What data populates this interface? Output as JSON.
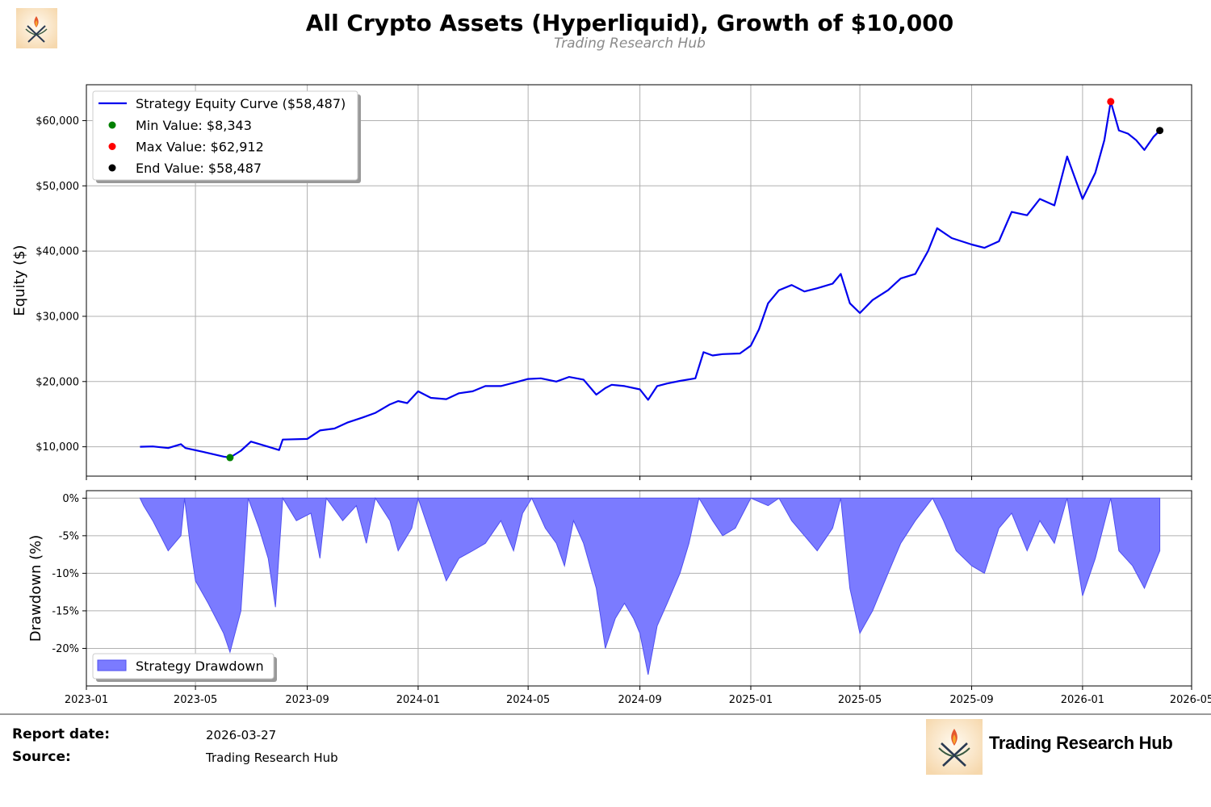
{
  "header": {
    "title": "All Crypto Assets (Hyperliquid), Growth of $10,000",
    "subtitle": "Trading Research Hub"
  },
  "colors": {
    "equity_line": "#0000ee",
    "drawdown_fill": "#7b7bff",
    "drawdown_edge": "#5050f0",
    "min_marker": "#008000",
    "max_marker": "#ff0000",
    "end_marker": "#000000",
    "grid": "#b0b0b0"
  },
  "chart_data": [
    {
      "type": "line",
      "ylabel": "Equity ($)",
      "xlim": [
        "2023-01-01",
        "2026-05-01"
      ],
      "ylim": [
        5500,
        65500
      ],
      "y_ticks": [
        10000,
        20000,
        30000,
        40000,
        50000,
        60000
      ],
      "y_tick_labels": [
        "$10,000",
        "$20,000",
        "$30,000",
        "$40,000",
        "$50,000",
        "$60,000"
      ],
      "grid": true,
      "legend_position": "top-left",
      "series": [
        {
          "name": "Strategy Equity Curve ($58,487)",
          "points": [
            [
              "2023-03-01",
              10000
            ],
            [
              "2023-03-15",
              10050
            ],
            [
              "2023-04-01",
              9800
            ],
            [
              "2023-04-15",
              10400
            ],
            [
              "2023-04-20",
              9800
            ],
            [
              "2023-05-10",
              9200
            ],
            [
              "2023-06-01",
              8500
            ],
            [
              "2023-06-08",
              8343
            ],
            [
              "2023-06-20",
              9400
            ],
            [
              "2023-07-01",
              10800
            ],
            [
              "2023-07-20",
              10000
            ],
            [
              "2023-08-01",
              9500
            ],
            [
              "2023-08-05",
              11100
            ],
            [
              "2023-09-01",
              11200
            ],
            [
              "2023-09-15",
              12500
            ],
            [
              "2023-10-01",
              12800
            ],
            [
              "2023-10-15",
              13700
            ],
            [
              "2023-11-01",
              14500
            ],
            [
              "2023-11-15",
              15200
            ],
            [
              "2023-12-01",
              16500
            ],
            [
              "2023-12-10",
              17000
            ],
            [
              "2023-12-20",
              16700
            ],
            [
              "2024-01-01",
              18500
            ],
            [
              "2024-01-15",
              17500
            ],
            [
              "2024-02-01",
              17300
            ],
            [
              "2024-02-15",
              18200
            ],
            [
              "2024-03-01",
              18500
            ],
            [
              "2024-03-15",
              19300
            ],
            [
              "2024-04-01",
              19300
            ],
            [
              "2024-04-15",
              19800
            ],
            [
              "2024-05-01",
              20400
            ],
            [
              "2024-05-15",
              20500
            ],
            [
              "2024-06-01",
              20000
            ],
            [
              "2024-06-15",
              20700
            ],
            [
              "2024-07-01",
              20300
            ],
            [
              "2024-07-15",
              18000
            ],
            [
              "2024-07-25",
              19000
            ],
            [
              "2024-08-01",
              19500
            ],
            [
              "2024-08-15",
              19300
            ],
            [
              "2024-09-01",
              18800
            ],
            [
              "2024-09-10",
              17200
            ],
            [
              "2024-09-20",
              19300
            ],
            [
              "2024-10-01",
              19700
            ],
            [
              "2024-10-15",
              20100
            ],
            [
              "2024-11-01",
              20500
            ],
            [
              "2024-11-10",
              24500
            ],
            [
              "2024-11-20",
              24000
            ],
            [
              "2024-12-01",
              24200
            ],
            [
              "2024-12-20",
              24300
            ],
            [
              "2025-01-01",
              25500
            ],
            [
              "2025-01-10",
              28000
            ],
            [
              "2025-01-20",
              32000
            ],
            [
              "2025-02-01",
              34000
            ],
            [
              "2025-02-15",
              34800
            ],
            [
              "2025-03-01",
              33800
            ],
            [
              "2025-03-15",
              34300
            ],
            [
              "2025-04-01",
              35000
            ],
            [
              "2025-04-10",
              36500
            ],
            [
              "2025-04-20",
              32000
            ],
            [
              "2025-05-01",
              30500
            ],
            [
              "2025-05-15",
              32500
            ],
            [
              "2025-06-01",
              34000
            ],
            [
              "2025-06-15",
              35800
            ],
            [
              "2025-07-01",
              36500
            ],
            [
              "2025-07-15",
              40000
            ],
            [
              "2025-07-25",
              43500
            ],
            [
              "2025-08-10",
              42000
            ],
            [
              "2025-09-01",
              41000
            ],
            [
              "2025-09-15",
              40500
            ],
            [
              "2025-10-01",
              41500
            ],
            [
              "2025-10-15",
              46000
            ],
            [
              "2025-11-01",
              45500
            ],
            [
              "2025-11-15",
              48000
            ],
            [
              "2025-12-01",
              47000
            ],
            [
              "2025-12-15",
              54500
            ],
            [
              "2026-01-01",
              48000
            ],
            [
              "2026-01-15",
              52000
            ],
            [
              "2026-01-25",
              57000
            ],
            [
              "2026-02-01",
              62912
            ],
            [
              "2026-02-10",
              58500
            ],
            [
              "2026-02-20",
              58000
            ],
            [
              "2026-03-01",
              57000
            ],
            [
              "2026-03-10",
              55500
            ],
            [
              "2026-03-20",
              57500
            ],
            [
              "2026-03-27",
              58487
            ]
          ]
        }
      ],
      "markers": [
        {
          "name": "Min Value: $8,343",
          "x": "2023-06-08",
          "y": 8343
        },
        {
          "name": "Max Value: $62,912",
          "x": "2026-02-01",
          "y": 62912
        },
        {
          "name": "End Value: $58,487",
          "x": "2026-03-27",
          "y": 58487
        }
      ]
    },
    {
      "type": "area",
      "ylabel": "Drawdown (%)",
      "xlim": [
        "2023-01-01",
        "2026-05-01"
      ],
      "ylim": [
        -25,
        1
      ],
      "y_ticks": [
        0,
        -5,
        -10,
        -15,
        -20
      ],
      "y_tick_labels": [
        "0%",
        "-5%",
        "-10%",
        "-15%",
        "-20%"
      ],
      "x_tick_labels": [
        "2023-01",
        "2023-05",
        "2023-09",
        "2024-01",
        "2024-05",
        "2024-09",
        "2025-01",
        "2025-05",
        "2025-09",
        "2026-01",
        "2026-05"
      ],
      "x_ticks": [
        "2023-01-01",
        "2023-05-01",
        "2023-09-01",
        "2024-01-01",
        "2024-05-01",
        "2024-09-01",
        "2025-01-01",
        "2025-05-01",
        "2025-09-01",
        "2026-01-01",
        "2026-05-01"
      ],
      "grid": true,
      "legend_position": "bottom-left",
      "series": [
        {
          "name": "Strategy Drawdown",
          "points": [
            [
              "2023-03-01",
              0
            ],
            [
              "2023-03-05",
              -1
            ],
            [
              "2023-03-15",
              -3
            ],
            [
              "2023-04-01",
              -7
            ],
            [
              "2023-04-15",
              -5
            ],
            [
              "2023-04-19",
              0
            ],
            [
              "2023-04-25",
              -6
            ],
            [
              "2023-05-01",
              -11
            ],
            [
              "2023-05-15",
              -14
            ],
            [
              "2023-06-01",
              -18
            ],
            [
              "2023-06-08",
              -20.5
            ],
            [
              "2023-06-20",
              -15
            ],
            [
              "2023-06-28",
              0
            ],
            [
              "2023-07-10",
              -4
            ],
            [
              "2023-07-20",
              -8
            ],
            [
              "2023-07-28",
              -14.5
            ],
            [
              "2023-08-05",
              0
            ],
            [
              "2023-08-20",
              -3
            ],
            [
              "2023-09-05",
              -2
            ],
            [
              "2023-09-15",
              -8
            ],
            [
              "2023-09-22",
              0
            ],
            [
              "2023-10-10",
              -3
            ],
            [
              "2023-10-25",
              -1
            ],
            [
              "2023-11-05",
              -6
            ],
            [
              "2023-11-15",
              0
            ],
            [
              "2023-12-01",
              -3
            ],
            [
              "2023-12-10",
              -7
            ],
            [
              "2023-12-25",
              -4
            ],
            [
              "2024-01-01",
              0
            ],
            [
              "2024-01-15",
              -5
            ],
            [
              "2024-02-01",
              -11
            ],
            [
              "2024-02-15",
              -8
            ],
            [
              "2024-03-01",
              -7
            ],
            [
              "2024-03-15",
              -6
            ],
            [
              "2024-04-01",
              -3
            ],
            [
              "2024-04-15",
              -7
            ],
            [
              "2024-04-25",
              -2
            ],
            [
              "2024-05-05",
              0
            ],
            [
              "2024-05-20",
              -4
            ],
            [
              "2024-06-01",
              -6
            ],
            [
              "2024-06-10",
              -9
            ],
            [
              "2024-06-20",
              -3
            ],
            [
              "2024-07-01",
              -6
            ],
            [
              "2024-07-15",
              -12
            ],
            [
              "2024-07-25",
              -20
            ],
            [
              "2024-08-05",
              -16
            ],
            [
              "2024-08-15",
              -14
            ],
            [
              "2024-08-25",
              -16
            ],
            [
              "2024-09-01",
              -18
            ],
            [
              "2024-09-10",
              -23.5
            ],
            [
              "2024-09-20",
              -17
            ],
            [
              "2024-10-01",
              -14
            ],
            [
              "2024-10-15",
              -10
            ],
            [
              "2024-10-25",
              -6
            ],
            [
              "2024-11-05",
              0
            ],
            [
              "2024-11-20",
              -3
            ],
            [
              "2024-12-01",
              -5
            ],
            [
              "2024-12-15",
              -4
            ],
            [
              "2025-01-01",
              0
            ],
            [
              "2025-01-20",
              -1
            ],
            [
              "2025-02-01",
              0
            ],
            [
              "2025-02-15",
              -3
            ],
            [
              "2025-03-01",
              -5
            ],
            [
              "2025-03-15",
              -7
            ],
            [
              "2025-04-01",
              -4
            ],
            [
              "2025-04-10",
              0
            ],
            [
              "2025-04-20",
              -12
            ],
            [
              "2025-05-01",
              -18
            ],
            [
              "2025-05-15",
              -15
            ],
            [
              "2025-06-01",
              -10
            ],
            [
              "2025-06-15",
              -6
            ],
            [
              "2025-07-01",
              -3
            ],
            [
              "2025-07-20",
              0
            ],
            [
              "2025-08-01",
              -3
            ],
            [
              "2025-08-15",
              -7
            ],
            [
              "2025-09-01",
              -9
            ],
            [
              "2025-09-15",
              -10
            ],
            [
              "2025-10-01",
              -4
            ],
            [
              "2025-10-15",
              -2
            ],
            [
              "2025-11-01",
              -7
            ],
            [
              "2025-11-15",
              -3
            ],
            [
              "2025-12-01",
              -6
            ],
            [
              "2025-12-15",
              0
            ],
            [
              "2026-01-01",
              -13
            ],
            [
              "2026-01-15",
              -8
            ],
            [
              "2026-02-01",
              0
            ],
            [
              "2026-02-10",
              -7
            ],
            [
              "2026-02-25",
              -9
            ],
            [
              "2026-03-10",
              -12
            ],
            [
              "2026-03-27",
              -7
            ]
          ]
        }
      ]
    }
  ],
  "footer": {
    "report_date_label": "Report date:",
    "report_date_value": "2026-03-27",
    "source_label": "Source:",
    "source_value": "Trading Research Hub",
    "brand": "Trading Research Hub",
    "logo_icon": "crossed-swords-flame-icon"
  }
}
